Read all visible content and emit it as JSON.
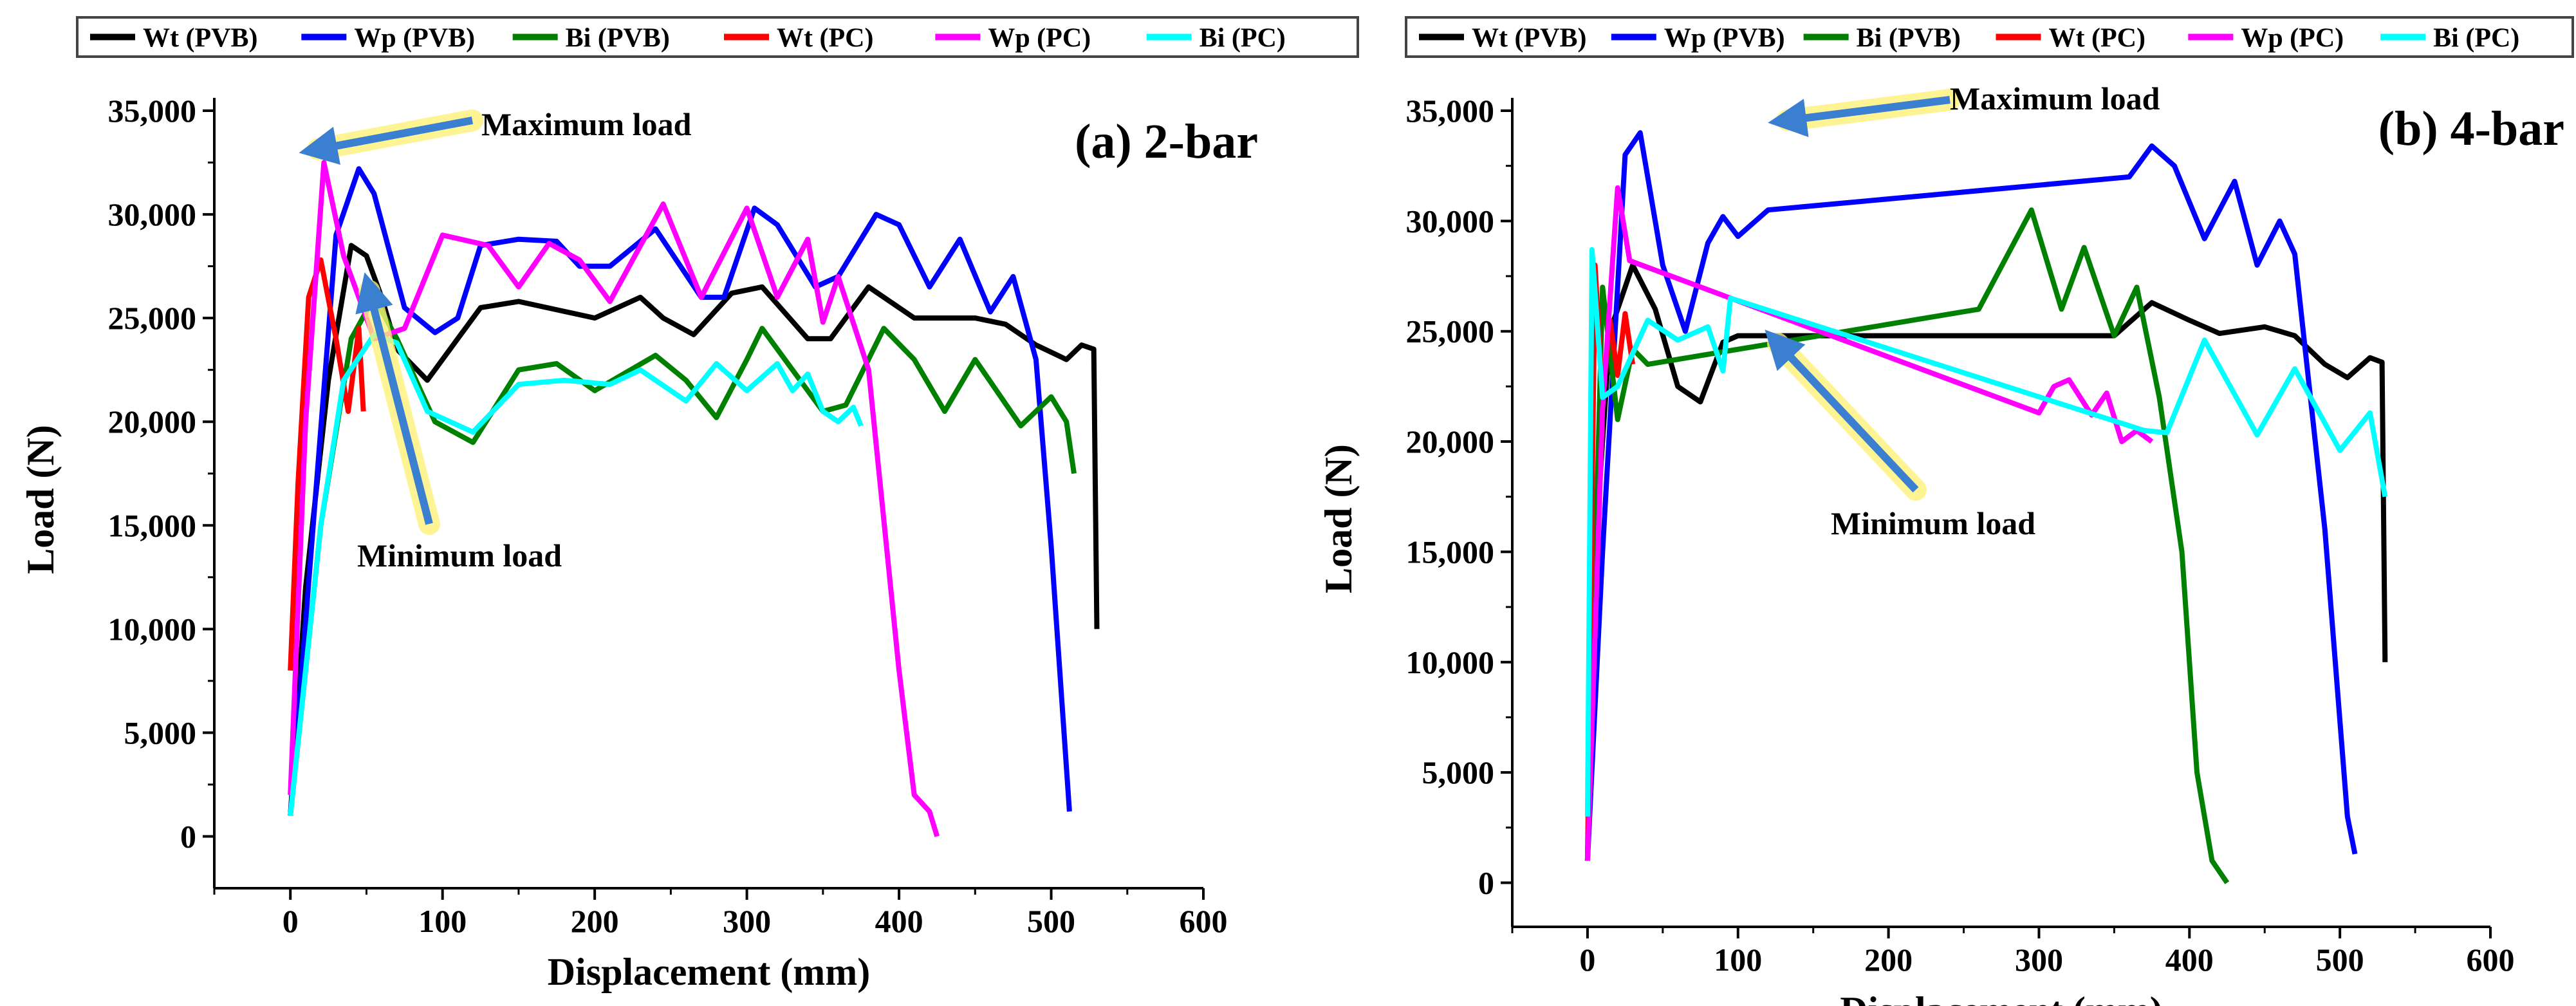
{
  "colors": {
    "Wt (PVB)": "#000000",
    "Wp (PVB)": "#0000ff",
    "Bi (PVB)": "#008000",
    "Wt (PC)": "#ff0000",
    "Wp (PC)": "#ff00ff",
    "Bi (PC)": "#00ffff",
    "arrow": "#3a7fd0",
    "glow": "#fff27a"
  },
  "chart_data": [
    {
      "type": "line",
      "title": "(a) 2-bar",
      "xlabel": "Displacement (mm)",
      "ylabel": "Load (N)",
      "xlim": [
        -50,
        600
      ],
      "ylim": [
        -2500,
        35000
      ],
      "xticks": [
        0,
        100,
        200,
        300,
        400,
        500,
        600
      ],
      "yticks": [
        0,
        5000,
        10000,
        15000,
        20000,
        25000,
        30000,
        35000
      ],
      "ytick_labels": [
        "0",
        "5,000",
        "10,000",
        "15,000",
        "20,000",
        "25,000",
        "30,000",
        "35,000"
      ],
      "grid": false,
      "legend": [
        "Wt (PVB)",
        "Wp (PVB)",
        "Bi (PVB)",
        "Wt (PC)",
        "Wp (PC)",
        "Bi (PC)"
      ],
      "legend_placement": "top",
      "annotations": [
        "Maximum load",
        "Minimum load"
      ],
      "series": [
        {
          "name": "Wt (PVB)",
          "points": [
            [
              0,
              1000
            ],
            [
              10,
              12000
            ],
            [
              25,
              22000
            ],
            [
              40,
              28500
            ],
            [
              50,
              28000
            ],
            [
              60,
              26000
            ],
            [
              70,
              23500
            ],
            [
              90,
              22000
            ],
            [
              110,
              24000
            ],
            [
              125,
              25500
            ],
            [
              150,
              25800
            ],
            [
              200,
              25000
            ],
            [
              230,
              26000
            ],
            [
              245,
              25000
            ],
            [
              265,
              24200
            ],
            [
              290,
              26200
            ],
            [
              310,
              26500
            ],
            [
              340,
              24000
            ],
            [
              355,
              24000
            ],
            [
              380,
              26500
            ],
            [
              410,
              25000
            ],
            [
              450,
              25000
            ],
            [
              470,
              24700
            ],
            [
              490,
              23700
            ],
            [
              510,
              23000
            ],
            [
              520,
              23700
            ],
            [
              528,
              23500
            ],
            [
              530,
              10000
            ]
          ]
        },
        {
          "name": "Wp (PVB)",
          "points": [
            [
              0,
              1000
            ],
            [
              15,
              15000
            ],
            [
              30,
              29000
            ],
            [
              45,
              32200
            ],
            [
              55,
              31000
            ],
            [
              75,
              25500
            ],
            [
              95,
              24300
            ],
            [
              110,
              25000
            ],
            [
              125,
              28500
            ],
            [
              150,
              28800
            ],
            [
              175,
              28700
            ],
            [
              190,
              27500
            ],
            [
              210,
              27500
            ],
            [
              240,
              29300
            ],
            [
              270,
              26000
            ],
            [
              285,
              26000
            ],
            [
              305,
              30300
            ],
            [
              320,
              29500
            ],
            [
              345,
              26500
            ],
            [
              360,
              27000
            ],
            [
              385,
              30000
            ],
            [
              400,
              29500
            ],
            [
              420,
              26500
            ],
            [
              440,
              28800
            ],
            [
              460,
              25300
            ],
            [
              475,
              27000
            ],
            [
              490,
              23000
            ],
            [
              500,
              14000
            ],
            [
              512,
              1200
            ]
          ]
        },
        {
          "name": "Bi (PVB)",
          "points": [
            [
              0,
              1000
            ],
            [
              20,
              15000
            ],
            [
              40,
              24000
            ],
            [
              55,
              26000
            ],
            [
              70,
              24000
            ],
            [
              95,
              20000
            ],
            [
              120,
              19000
            ],
            [
              150,
              22500
            ],
            [
              175,
              22800
            ],
            [
              200,
              21500
            ],
            [
              240,
              23200
            ],
            [
              260,
              22000
            ],
            [
              280,
              20200
            ],
            [
              300,
              23000
            ],
            [
              310,
              24500
            ],
            [
              330,
              22500
            ],
            [
              350,
              20500
            ],
            [
              365,
              20800
            ],
            [
              390,
              24500
            ],
            [
              410,
              23000
            ],
            [
              430,
              20500
            ],
            [
              450,
              23000
            ],
            [
              480,
              19800
            ],
            [
              500,
              21200
            ],
            [
              510,
              20000
            ],
            [
              515,
              17500
            ]
          ]
        },
        {
          "name": "Wt (PC)",
          "points": [
            [
              0,
              8000
            ],
            [
              5,
              17000
            ],
            [
              12,
              26000
            ],
            [
              20,
              27800
            ],
            [
              30,
              24000
            ],
            [
              38,
              20500
            ],
            [
              45,
              24500
            ],
            [
              48,
              20500
            ]
          ]
        },
        {
          "name": "Wp (PC)",
          "points": [
            [
              0,
              2000
            ],
            [
              10,
              20000
            ],
            [
              22,
              32500
            ],
            [
              35,
              28000
            ],
            [
              55,
              24000
            ],
            [
              75,
              24500
            ],
            [
              100,
              29000
            ],
            [
              130,
              28500
            ],
            [
              150,
              26500
            ],
            [
              170,
              28600
            ],
            [
              190,
              27800
            ],
            [
              210,
              25800
            ],
            [
              245,
              30500
            ],
            [
              270,
              26000
            ],
            [
              300,
              30300
            ],
            [
              320,
              26000
            ],
            [
              340,
              28800
            ],
            [
              350,
              24800
            ],
            [
              360,
              27000
            ],
            [
              380,
              22500
            ],
            [
              400,
              8000
            ],
            [
              410,
              2000
            ],
            [
              420,
              1200
            ],
            [
              425,
              0
            ]
          ]
        },
        {
          "name": "Bi (PC)",
          "points": [
            [
              0,
              1000
            ],
            [
              20,
              15000
            ],
            [
              35,
              22000
            ],
            [
              55,
              24200
            ],
            [
              70,
              23800
            ],
            [
              90,
              20500
            ],
            [
              120,
              19500
            ],
            [
              150,
              21800
            ],
            [
              180,
              22000
            ],
            [
              210,
              21800
            ],
            [
              230,
              22500
            ],
            [
              260,
              21000
            ],
            [
              280,
              22800
            ],
            [
              300,
              21500
            ],
            [
              320,
              22800
            ],
            [
              330,
              21500
            ],
            [
              340,
              22300
            ],
            [
              350,
              20500
            ],
            [
              360,
              20000
            ],
            [
              370,
              20700
            ],
            [
              375,
              19800
            ]
          ]
        }
      ]
    },
    {
      "type": "line",
      "title": "(b) 4-bar",
      "xlabel": "Displacement (mm)",
      "ylabel": "Load (N)",
      "xlim": [
        -50,
        600
      ],
      "ylim": [
        -2000,
        35000
      ],
      "xticks": [
        0,
        100,
        200,
        300,
        400,
        500,
        600
      ],
      "yticks": [
        0,
        5000,
        10000,
        15000,
        20000,
        25000,
        30000,
        35000
      ],
      "ytick_labels": [
        "0",
        "5,000",
        "10,000",
        "15,000",
        "20,000",
        "25,000",
        "30,000",
        "35,000"
      ],
      "grid": false,
      "legend": [
        "Wt (PVB)",
        "Wp (PVB)",
        "Bi (PVB)",
        "Wt (PC)",
        "Wp (PC)",
        "Bi (PC)"
      ],
      "legend_placement": "top",
      "annotations": [
        "Maximum load",
        "Minimum load"
      ],
      "series": [
        {
          "name": "Wt (PVB)",
          "points": [
            [
              0,
              1000
            ],
            [
              5,
              15000
            ],
            [
              15,
              25000
            ],
            [
              30,
              28000
            ],
            [
              45,
              26000
            ],
            [
              60,
              22500
            ],
            [
              75,
              21800
            ],
            [
              90,
              24500
            ],
            [
              100,
              24800
            ],
            [
              300,
              24800
            ],
            [
              350,
              24800
            ],
            [
              375,
              26300
            ],
            [
              400,
              25500
            ],
            [
              420,
              24900
            ],
            [
              450,
              25200
            ],
            [
              470,
              24800
            ],
            [
              490,
              23500
            ],
            [
              505,
              22900
            ],
            [
              520,
              23800
            ],
            [
              528,
              23600
            ],
            [
              530,
              10000
            ]
          ]
        },
        {
          "name": "Wp (PVB)",
          "points": [
            [
              0,
              1000
            ],
            [
              10,
              15000
            ],
            [
              25,
              33000
            ],
            [
              35,
              34000
            ],
            [
              50,
              28000
            ],
            [
              65,
              25000
            ],
            [
              80,
              29000
            ],
            [
              90,
              30200
            ],
            [
              100,
              29300
            ],
            [
              120,
              30500
            ],
            [
              360,
              32000
            ],
            [
              375,
              33400
            ],
            [
              390,
              32500
            ],
            [
              410,
              29200
            ],
            [
              430,
              31800
            ],
            [
              445,
              28000
            ],
            [
              460,
              30000
            ],
            [
              470,
              28500
            ],
            [
              490,
              16000
            ],
            [
              505,
              3000
            ],
            [
              510,
              1300
            ]
          ]
        },
        {
          "name": "Bi (PVB)",
          "points": [
            [
              0,
              1000
            ],
            [
              10,
              27000
            ],
            [
              20,
              21000
            ],
            [
              30,
              24200
            ],
            [
              40,
              23500
            ],
            [
              260,
              26000
            ],
            [
              295,
              30500
            ],
            [
              315,
              26000
            ],
            [
              330,
              28800
            ],
            [
              350,
              24800
            ],
            [
              365,
              27000
            ],
            [
              380,
              22000
            ],
            [
              395,
              15000
            ],
            [
              405,
              5000
            ],
            [
              415,
              1000
            ],
            [
              425,
              0
            ]
          ]
        },
        {
          "name": "Wt (PC)",
          "points": [
            [
              0,
              1000
            ],
            [
              5,
              28000
            ],
            [
              10,
              22000
            ],
            [
              15,
              25500
            ],
            [
              20,
              23000
            ],
            [
              25,
              25800
            ],
            [
              30,
              23500
            ]
          ]
        },
        {
          "name": "Wp (PC)",
          "points": [
            [
              0,
              1000
            ],
            [
              10,
              21500
            ],
            [
              20,
              31500
            ],
            [
              28,
              28200
            ],
            [
              300,
              21300
            ],
            [
              310,
              22500
            ],
            [
              320,
              22800
            ],
            [
              335,
              21200
            ],
            [
              345,
              22200
            ],
            [
              355,
              20000
            ],
            [
              365,
              20500
            ],
            [
              375,
              20000
            ]
          ]
        },
        {
          "name": "Bi (PC)",
          "points": [
            [
              0,
              3000
            ],
            [
              3,
              28700
            ],
            [
              10,
              22000
            ],
            [
              20,
              22500
            ],
            [
              40,
              25500
            ],
            [
              60,
              24600
            ],
            [
              80,
              25200
            ],
            [
              90,
              23200
            ],
            [
              95,
              26500
            ],
            [
              370,
              20500
            ],
            [
              385,
              20400
            ],
            [
              410,
              24600
            ],
            [
              445,
              20300
            ],
            [
              470,
              23300
            ],
            [
              500,
              19600
            ],
            [
              520,
              21300
            ],
            [
              530,
              17500
            ]
          ]
        }
      ]
    }
  ]
}
